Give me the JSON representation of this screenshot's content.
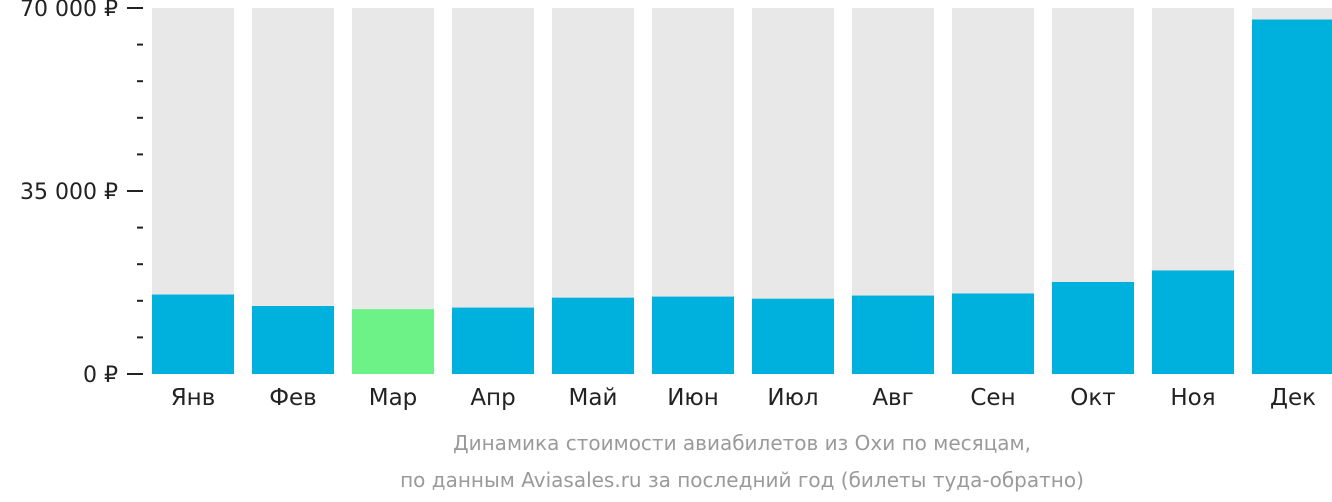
{
  "chart_data": {
    "type": "bar",
    "categories": [
      "Янв",
      "Фев",
      "Мар",
      "Апр",
      "Май",
      "Июн",
      "Июл",
      "Авг",
      "Сен",
      "Окт",
      "Ноя",
      "Дек"
    ],
    "values": [
      15200,
      13000,
      12400,
      12700,
      14600,
      14800,
      14400,
      15000,
      15400,
      17600,
      19800,
      67800
    ],
    "highlight_index": 2,
    "ylim": [
      0,
      70000
    ],
    "yticks": [
      {
        "value": 70000,
        "label": "70 000 ₽"
      },
      {
        "value": 35000,
        "label": "35 000 ₽"
      },
      {
        "value": 0,
        "label": "0 ₽"
      }
    ],
    "minor_tick_step": 7000,
    "colors": {
      "bar": "#00b0dd",
      "highlight": "#6cf286",
      "track": "#e8e8e8",
      "axis": "#222222"
    },
    "caption_line1": "Динамика стоимости авиабилетов из Охи по месяцам,",
    "caption_line2": "по данным Aviasales.ru за последний год (билеты туда-обратно)"
  }
}
